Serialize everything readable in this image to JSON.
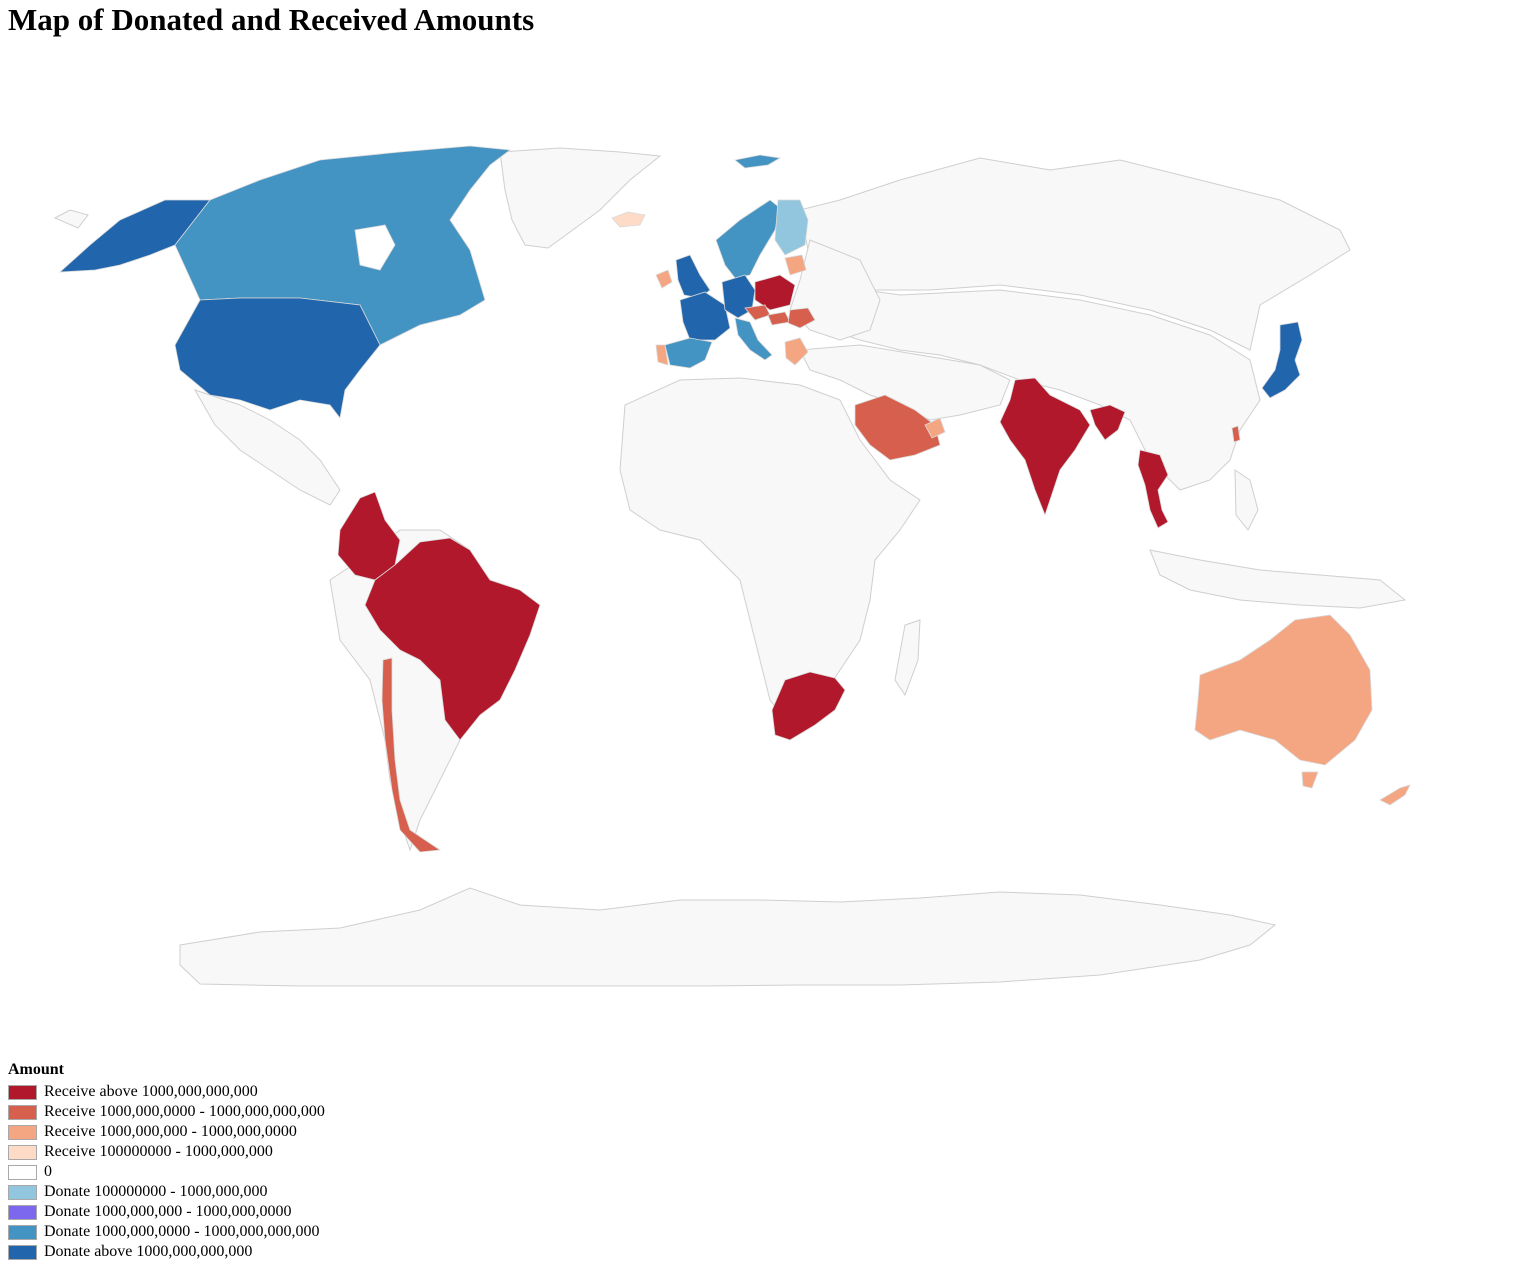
{
  "title": "Map of Donated and Received Amounts",
  "legend": {
    "title": "Amount",
    "items": [
      {
        "label": "Receive above 1000,000,000,000",
        "color": "#b2182b"
      },
      {
        "label": "Receive 1000,000,0000 - 1000,000,000,000",
        "color": "#d6604d"
      },
      {
        "label": "Receive 1000,000,000 - 1000,000,0000",
        "color": "#f4a582"
      },
      {
        "label": "Receive 100000000 - 1000,000,000",
        "color": "#fddbc7"
      },
      {
        "label": "0",
        "color": "#ffffff"
      },
      {
        "label": "Donate 100000000 - 1000,000,000",
        "color": "#92c5de"
      },
      {
        "label": "Donate 1000,000,000 - 1000,000,0000",
        "color": "#7b68ee"
      },
      {
        "label": "Donate 1000,000,0000 - 1000,000,000,000",
        "color": "#4393c3"
      },
      {
        "label": "Donate above 1000,000,000,000",
        "color": "#2166ac"
      }
    ]
  },
  "colors": {
    "neutral_land": "#f8f8f8",
    "border": "#cfcfcf"
  },
  "countries": [
    {
      "name": "Alaska / United States",
      "category": "Donate above 1000,000,000,000",
      "color": "#2166ac"
    },
    {
      "name": "Canada",
      "category": "Donate 1000,000,0000 - 1000,000,000,000",
      "color": "#4393c3"
    },
    {
      "name": "United States",
      "category": "Donate above 1000,000,000,000",
      "color": "#2166ac"
    },
    {
      "name": "Colombia",
      "category": "Receive above 1000,000,000,000",
      "color": "#b2182b"
    },
    {
      "name": "Brazil",
      "category": "Receive above 1000,000,000,000",
      "color": "#b2182b"
    },
    {
      "name": "Chile",
      "category": "Receive 1000,000,0000 - 1000,000,000,000",
      "color": "#d6604d"
    },
    {
      "name": "United Kingdom",
      "category": "Donate above 1000,000,000,000",
      "color": "#2166ac"
    },
    {
      "name": "Ireland",
      "category": "Receive 1000,000,000 - 1000,000,0000",
      "color": "#f4a582"
    },
    {
      "name": "France",
      "category": "Donate above 1000,000,000,000",
      "color": "#2166ac"
    },
    {
      "name": "Germany",
      "category": "Donate above 1000,000,000,000",
      "color": "#2166ac"
    },
    {
      "name": "Spain",
      "category": "Donate 1000,000,0000 - 1000,000,000,000",
      "color": "#4393c3"
    },
    {
      "name": "Portugal",
      "category": "Receive 1000,000,000 - 1000,000,0000",
      "color": "#f4a582"
    },
    {
      "name": "Italy",
      "category": "Donate 1000,000,0000 - 1000,000,000,000",
      "color": "#4393c3"
    },
    {
      "name": "Norway",
      "category": "Donate 1000,000,0000 - 1000,000,000,000",
      "color": "#4393c3"
    },
    {
      "name": "Sweden",
      "category": "Donate 1000,000,0000 - 1000,000,000,000",
      "color": "#4393c3"
    },
    {
      "name": "Finland",
      "category": "Donate 100000000 - 1000,000,000",
      "color": "#92c5de"
    },
    {
      "name": "Svalbard",
      "category": "Donate 1000,000,0000 - 1000,000,000,000",
      "color": "#4393c3"
    },
    {
      "name": "Iceland",
      "category": "Receive 100000000 - 1000,000,000",
      "color": "#fddbc7"
    },
    {
      "name": "Lithuania",
      "category": "Receive 1000,000,000 - 1000,000,0000",
      "color": "#f4a582"
    },
    {
      "name": "Poland",
      "category": "Receive above 1000,000,000,000",
      "color": "#b2182b"
    },
    {
      "name": "Czechia",
      "category": "Receive 1000,000,0000 - 1000,000,000,000",
      "color": "#d6604d"
    },
    {
      "name": "Hungary",
      "category": "Receive 1000,000,0000 - 1000,000,000,000",
      "color": "#d6604d"
    },
    {
      "name": "Romania",
      "category": "Receive 1000,000,0000 - 1000,000,000,000",
      "color": "#d6604d"
    },
    {
      "name": "Greece",
      "category": "Receive 1000,000,000 - 1000,000,0000",
      "color": "#f4a582"
    },
    {
      "name": "Saudi Arabia",
      "category": "Receive 1000,000,0000 - 1000,000,000,000",
      "color": "#d6604d"
    },
    {
      "name": "United Arab Emirates",
      "category": "Receive 1000,000,000 - 1000,000,0000",
      "color": "#f4a582"
    },
    {
      "name": "India",
      "category": "Receive above 1000,000,000,000",
      "color": "#b2182b"
    },
    {
      "name": "Bangladesh",
      "category": "Receive above 1000,000,000,000",
      "color": "#b2182b"
    },
    {
      "name": "Thailand",
      "category": "Receive above 1000,000,000,000",
      "color": "#b2182b"
    },
    {
      "name": "Japan",
      "category": "Donate above 1000,000,000,000",
      "color": "#2166ac"
    },
    {
      "name": "Taiwan",
      "category": "Receive 1000,000,0000 - 1000,000,000,000",
      "color": "#d6604d"
    },
    {
      "name": "South Africa",
      "category": "Receive above 1000,000,000,000",
      "color": "#b2182b"
    },
    {
      "name": "Australia",
      "category": "Receive 1000,000,000 - 1000,000,0000",
      "color": "#f4a582"
    },
    {
      "name": "New Zealand",
      "category": "Receive 1000,000,000 - 1000,000,0000",
      "color": "#f4a582"
    }
  ]
}
